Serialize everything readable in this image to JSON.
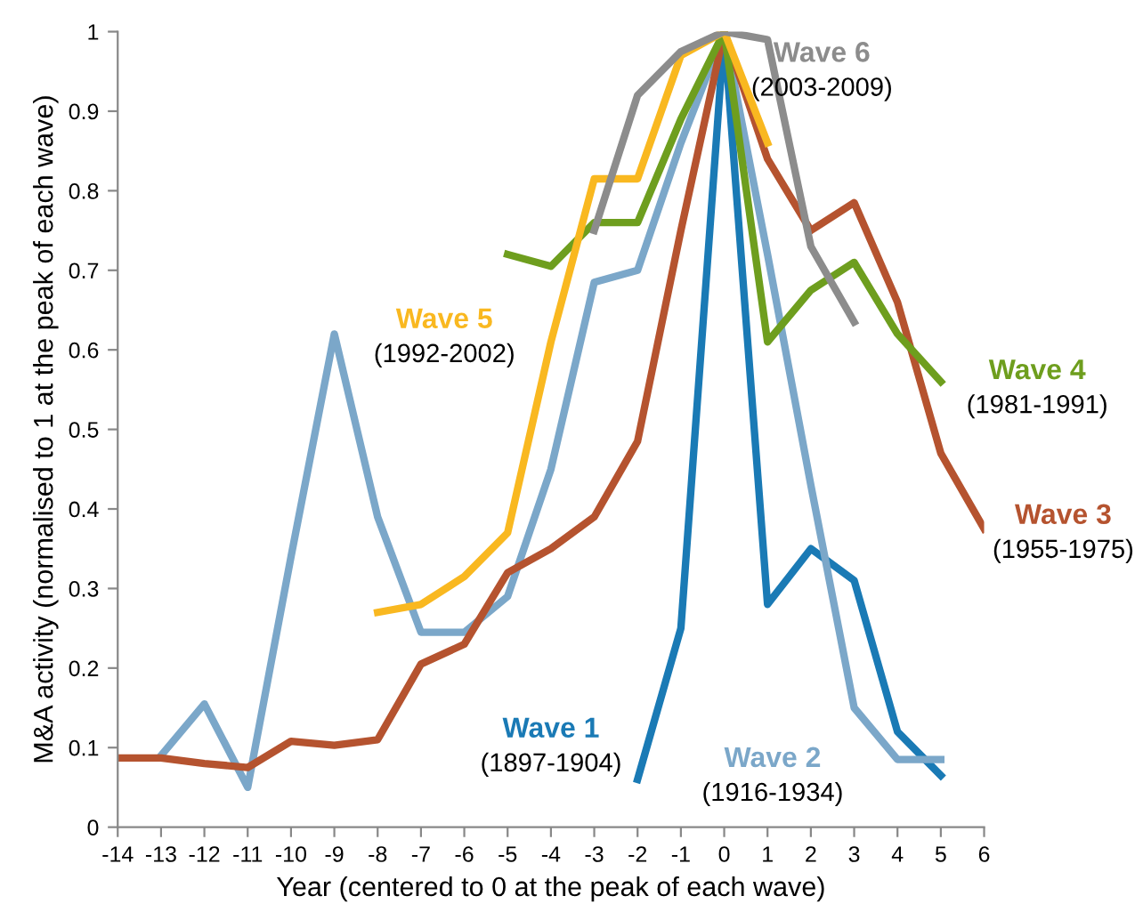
{
  "chart_data": {
    "type": "line",
    "xlabel": "Year (centered to 0 at the peak of each wave)",
    "ylabel": "M&A activity (normalised to 1 at the peak of each wave)",
    "xlim": [
      -14,
      6
    ],
    "xticks": [
      -14,
      -13,
      -12,
      -11,
      -10,
      -9,
      -8,
      -7,
      -6,
      -5,
      -4,
      -3,
      -2,
      -1,
      0,
      1,
      2,
      3,
      4,
      5,
      6
    ],
    "ylim": [
      0,
      1
    ],
    "yticks": [
      0,
      0.1,
      0.2,
      0.3,
      0.4,
      0.5,
      0.6,
      0.7,
      0.8,
      0.9,
      1
    ],
    "grid": false,
    "legend": false,
    "marker": "none",
    "line_style": "solid",
    "series": [
      {
        "name": "Wave 1",
        "color": "#1a7ab5",
        "x": [
          -2,
          -1,
          0,
          1,
          2,
          3,
          4,
          5
        ],
        "values": [
          0.06,
          0.25,
          1.0,
          0.28,
          0.35,
          0.31,
          0.12,
          0.065
        ]
      },
      {
        "name": "Wave 2",
        "color": "#7ba7c9",
        "x": [
          -13,
          -12,
          -11,
          -10,
          -9,
          -8,
          -7,
          -6,
          -5,
          -4,
          -3,
          -2,
          -1,
          0,
          1,
          2,
          3,
          4,
          5
        ],
        "values": [
          0.09,
          0.155,
          0.05,
          0.34,
          0.62,
          0.39,
          0.245,
          0.245,
          0.29,
          0.45,
          0.685,
          0.7,
          0.86,
          1.0,
          0.72,
          0.43,
          0.15,
          0.085,
          0.085
        ]
      },
      {
        "name": "Wave 3",
        "color": "#b5532f",
        "x": [
          -14,
          -13,
          -12,
          -11,
          -10,
          -9,
          -8,
          -7,
          -6,
          -5,
          -4,
          -3,
          -2,
          -1,
          0,
          1,
          2,
          3,
          4,
          5,
          6
        ],
        "values": [
          0.087,
          0.087,
          0.08,
          0.075,
          0.108,
          0.103,
          0.11,
          0.205,
          0.23,
          0.32,
          0.35,
          0.39,
          0.485,
          0.75,
          1.0,
          0.84,
          0.75,
          0.785,
          0.66,
          0.47,
          0.375
        ]
      },
      {
        "name": "Wave 4",
        "color": "#6e9e1e",
        "x": [
          -5,
          -4,
          -3,
          -2,
          -1,
          0,
          1,
          2,
          3,
          4,
          5
        ],
        "values": [
          0.72,
          0.705,
          0.76,
          0.76,
          0.89,
          1.0,
          0.61,
          0.675,
          0.71,
          0.62,
          0.56
        ]
      },
      {
        "name": "Wave 5",
        "color": "#f9b820",
        "x": [
          -8,
          -7,
          -6,
          -5,
          -4,
          -3,
          -2,
          -1,
          0,
          1
        ],
        "values": [
          0.27,
          0.28,
          0.315,
          0.37,
          0.61,
          0.815,
          0.815,
          0.97,
          1.0,
          0.86
        ]
      },
      {
        "name": "Wave 6",
        "color": "#8c8c8c",
        "x": [
          -3,
          -2,
          -1,
          0,
          1,
          2,
          3
        ],
        "values": [
          0.75,
          0.92,
          0.975,
          1.0,
          0.99,
          0.73,
          0.635
        ]
      }
    ],
    "annotations": [
      "(1897-1904)",
      "(1916-1934)",
      "(1955-1975)",
      "(1981-1991)",
      "(1992-2002)",
      "(2003-2009)"
    ]
  }
}
